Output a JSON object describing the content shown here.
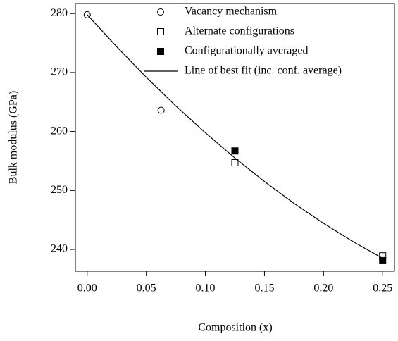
{
  "chart_data": {
    "type": "scatter",
    "xlabel": "Composition (x)",
    "ylabel": "Bulk modulus (GPa)",
    "xlim": [
      -0.01,
      0.26
    ],
    "ylim": [
      236.3,
      281.7
    ],
    "xticks": [
      {
        "value": 0,
        "label": "0.00"
      },
      {
        "value": 0.05,
        "label": "0.05"
      },
      {
        "value": 0.1,
        "label": "0.10"
      },
      {
        "value": 0.15,
        "label": "0.15"
      },
      {
        "value": 0.2,
        "label": "0.20"
      },
      {
        "value": 0.25,
        "label": "0.25"
      }
    ],
    "yticks": [
      240,
      250,
      260,
      270,
      280
    ],
    "grid": false,
    "legend": "top",
    "series": [
      {
        "name": "Vacancy mechanism",
        "marker": "circle-open",
        "color": "#000000",
        "x": [
          0,
          0.0625
        ],
        "values": [
          279.8,
          263.6
        ]
      },
      {
        "name": "Alternate configurations",
        "marker": "square-open",
        "color": "#000000",
        "x": [
          0.125,
          0.25
        ],
        "values": [
          254.7,
          238.9
        ]
      },
      {
        "name": "Configurationally averaged",
        "marker": "square-filled",
        "color": "#000000",
        "x": [
          0.125,
          0.25
        ],
        "values": [
          256.7,
          238.1
        ]
      },
      {
        "name": "Line of best fit (inc. conf. average)",
        "marker": "line",
        "color": "#000000",
        "x": [
          0,
          0.025,
          0.05,
          0.075,
          0.1,
          0.125,
          0.15,
          0.175,
          0.2,
          0.225,
          0.25
        ],
        "values": [
          279.8,
          274.36,
          269.2,
          264.34,
          259.78,
          255.5,
          251.52,
          247.82,
          244.42,
          241.32,
          238.5
        ]
      }
    ]
  }
}
